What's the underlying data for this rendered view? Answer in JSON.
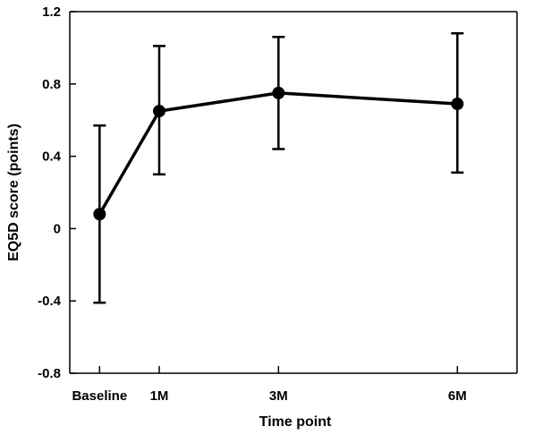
{
  "chart_data": {
    "type": "line",
    "xlabel": "Time point",
    "ylabel": "EQ5D score (points)",
    "ylim": [
      -0.8,
      1.2
    ],
    "yticks": [
      -0.8,
      -0.4,
      0,
      0.4,
      0.8,
      1.2
    ],
    "ytick_labels": [
      "-0.8",
      "-0.4",
      "0",
      "0.4",
      "0.8",
      "1.2"
    ],
    "x": [
      0,
      1,
      3,
      6
    ],
    "xlim": [
      -0.5,
      7
    ],
    "categories": [
      "Baseline",
      "1M",
      "3M",
      "6M"
    ],
    "series": [
      {
        "values": [
          0.08,
          0.65,
          0.75,
          0.69
        ],
        "error_low": [
          -0.41,
          0.3,
          0.44,
          0.31
        ],
        "error_high": [
          0.57,
          1.01,
          1.06,
          1.08
        ]
      }
    ],
    "grid": false,
    "legend": "none",
    "color": "#000000"
  }
}
